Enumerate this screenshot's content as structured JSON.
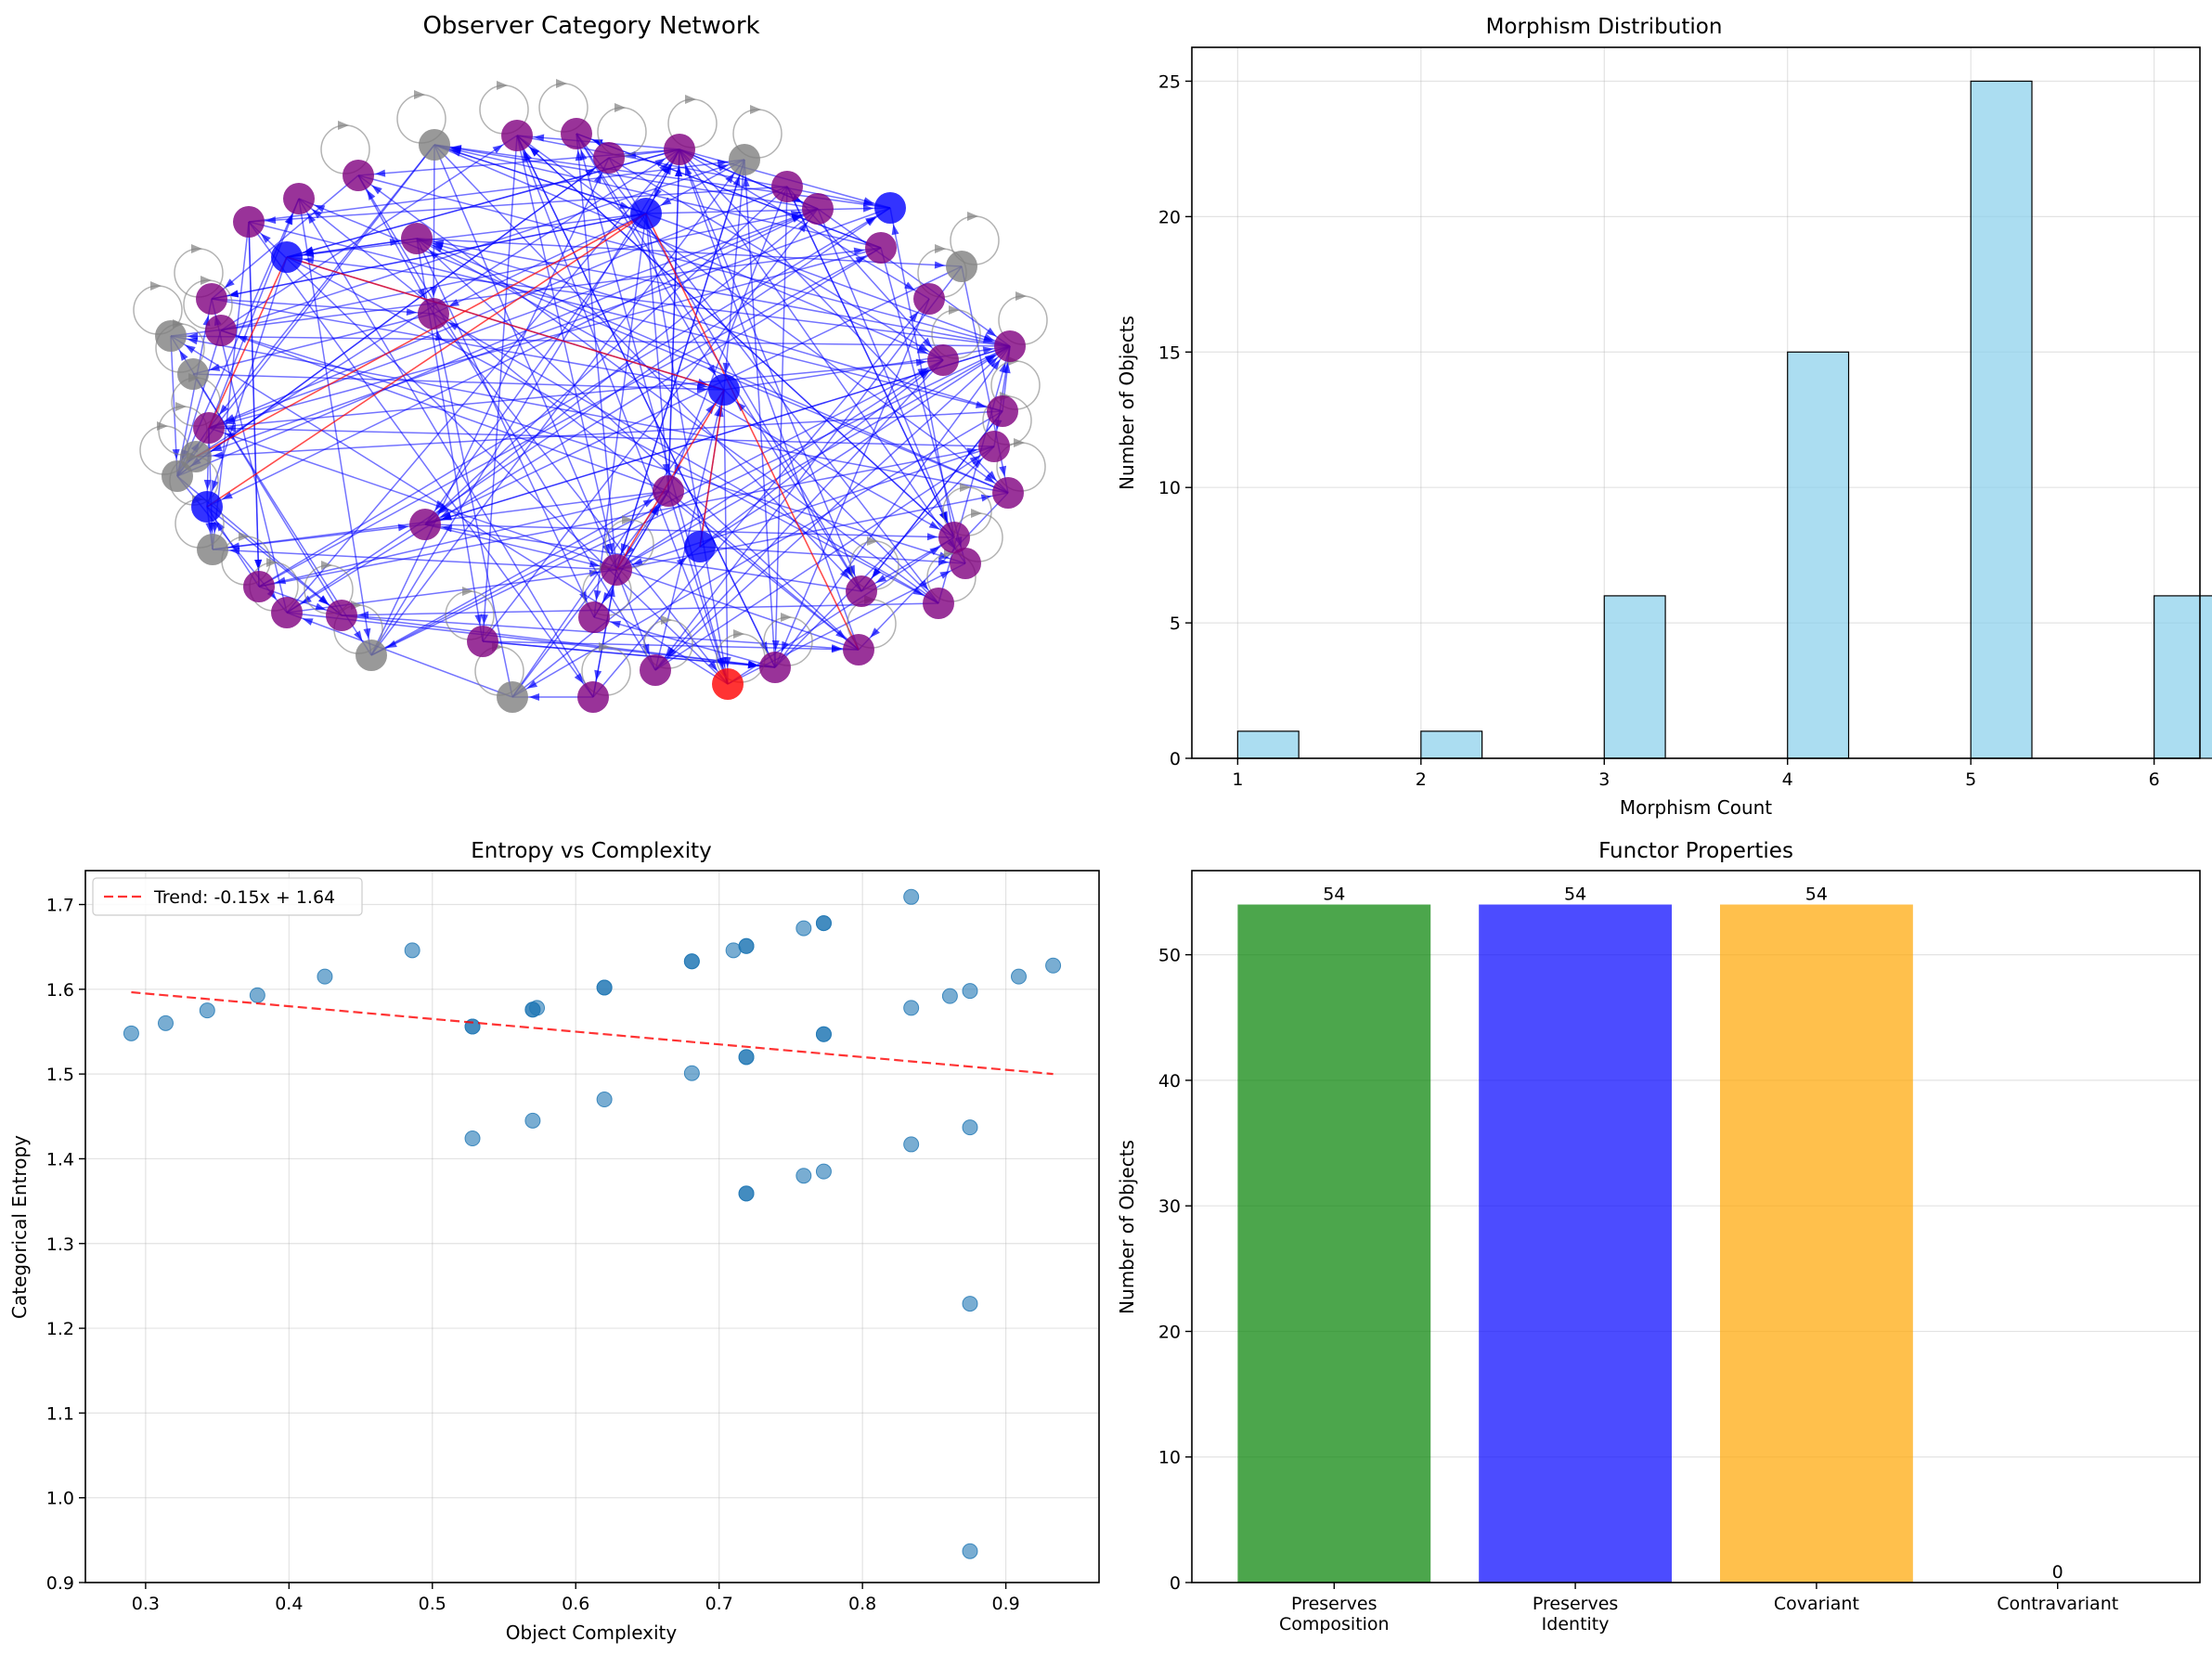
{
  "chart_data": [
    {
      "type": "network",
      "title": "Observer Category Network",
      "node_color_legend": {
        "purple": "#800080",
        "blue": "#0000ff",
        "gray": "#808080",
        "red": "#ff0000"
      },
      "node_counts": {
        "purple": 41,
        "blue": 7,
        "gray": 12,
        "red": 1
      },
      "edge_colors": {
        "morphism": "#0000ff",
        "highlight": "#ff0000",
        "identity": "#808080"
      }
    },
    {
      "type": "bar",
      "title": "Morphism Distribution",
      "xlabel": "Morphism Count",
      "ylabel": "Number of Objects",
      "bar_color": "#87ceeb",
      "x": [
        1,
        2,
        3,
        4,
        5,
        6
      ],
      "values": [
        1,
        1,
        6,
        15,
        25,
        6
      ],
      "xlim": [
        0.75,
        6.25
      ],
      "ylim": [
        0,
        26.25
      ],
      "xticks": [
        "1",
        "2",
        "3",
        "4",
        "5",
        "6"
      ],
      "yticks": [
        "0",
        "5",
        "10",
        "15",
        "20",
        "25"
      ],
      "grid": true
    },
    {
      "type": "scatter",
      "title": "Entropy vs Complexity",
      "xlabel": "Object Complexity",
      "ylabel": "Categorical Entropy",
      "point_color": "#1f77b4",
      "xlim": [
        0.258,
        0.965
      ],
      "ylim": [
        0.9,
        1.74
      ],
      "xticks": [
        "0.3",
        "0.4",
        "0.5",
        "0.6",
        "0.7",
        "0.8",
        "0.9"
      ],
      "yticks": [
        "0.9",
        "1.0",
        "1.1",
        "1.2",
        "1.3",
        "1.4",
        "1.5",
        "1.6",
        "1.7"
      ],
      "legend": "Trend: -0.15x + 1.64",
      "legend_position": "top-left",
      "trend": {
        "slope": -0.15,
        "intercept": 1.64,
        "x_range": [
          0.29,
          0.933
        ],
        "color": "#ff0000"
      },
      "grid": true,
      "points": [
        [
          0.29,
          1.548
        ],
        [
          0.314,
          1.56
        ],
        [
          0.343,
          1.575
        ],
        [
          0.378,
          1.593
        ],
        [
          0.425,
          1.615
        ],
        [
          0.486,
          1.646
        ],
        [
          0.528,
          1.556
        ],
        [
          0.528,
          1.556
        ],
        [
          0.528,
          1.424
        ],
        [
          0.57,
          1.576
        ],
        [
          0.57,
          1.576
        ],
        [
          0.573,
          1.578
        ],
        [
          0.57,
          1.445
        ],
        [
          0.62,
          1.602
        ],
        [
          0.62,
          1.602
        ],
        [
          0.62,
          1.47
        ],
        [
          0.681,
          1.633
        ],
        [
          0.681,
          1.633
        ],
        [
          0.681,
          1.501
        ],
        [
          0.71,
          1.646
        ],
        [
          0.719,
          1.651
        ],
        [
          0.719,
          1.651
        ],
        [
          0.719,
          1.52
        ],
        [
          0.719,
          1.52
        ],
        [
          0.719,
          1.359
        ],
        [
          0.719,
          1.359
        ],
        [
          0.759,
          1.672
        ],
        [
          0.759,
          1.38
        ],
        [
          0.773,
          1.678
        ],
        [
          0.773,
          1.678
        ],
        [
          0.773,
          1.547
        ],
        [
          0.773,
          1.547
        ],
        [
          0.773,
          1.385
        ],
        [
          0.834,
          1.709
        ],
        [
          0.834,
          1.578
        ],
        [
          0.834,
          1.417
        ],
        [
          0.861,
          1.592
        ],
        [
          0.875,
          1.598
        ],
        [
          0.875,
          1.437
        ],
        [
          0.875,
          1.229
        ],
        [
          0.875,
          0.937
        ],
        [
          0.909,
          1.615
        ],
        [
          0.933,
          1.628
        ]
      ]
    },
    {
      "type": "bar",
      "title": "Functor Properties",
      "ylabel": "Number of Objects",
      "categories": [
        "Preserves\nComposition",
        "Preserves\nIdentity",
        "Covariant",
        "Contravariant"
      ],
      "values": [
        54,
        54,
        54,
        0
      ],
      "value_labels": [
        "54",
        "54",
        "54",
        "0"
      ],
      "colors": [
        "#008000",
        "#0000ff",
        "#ffa500",
        "#ff0000"
      ],
      "ylim": [
        0,
        56.7
      ],
      "yticks": [
        "0",
        "10",
        "20",
        "30",
        "40",
        "50"
      ],
      "grid": true
    }
  ]
}
